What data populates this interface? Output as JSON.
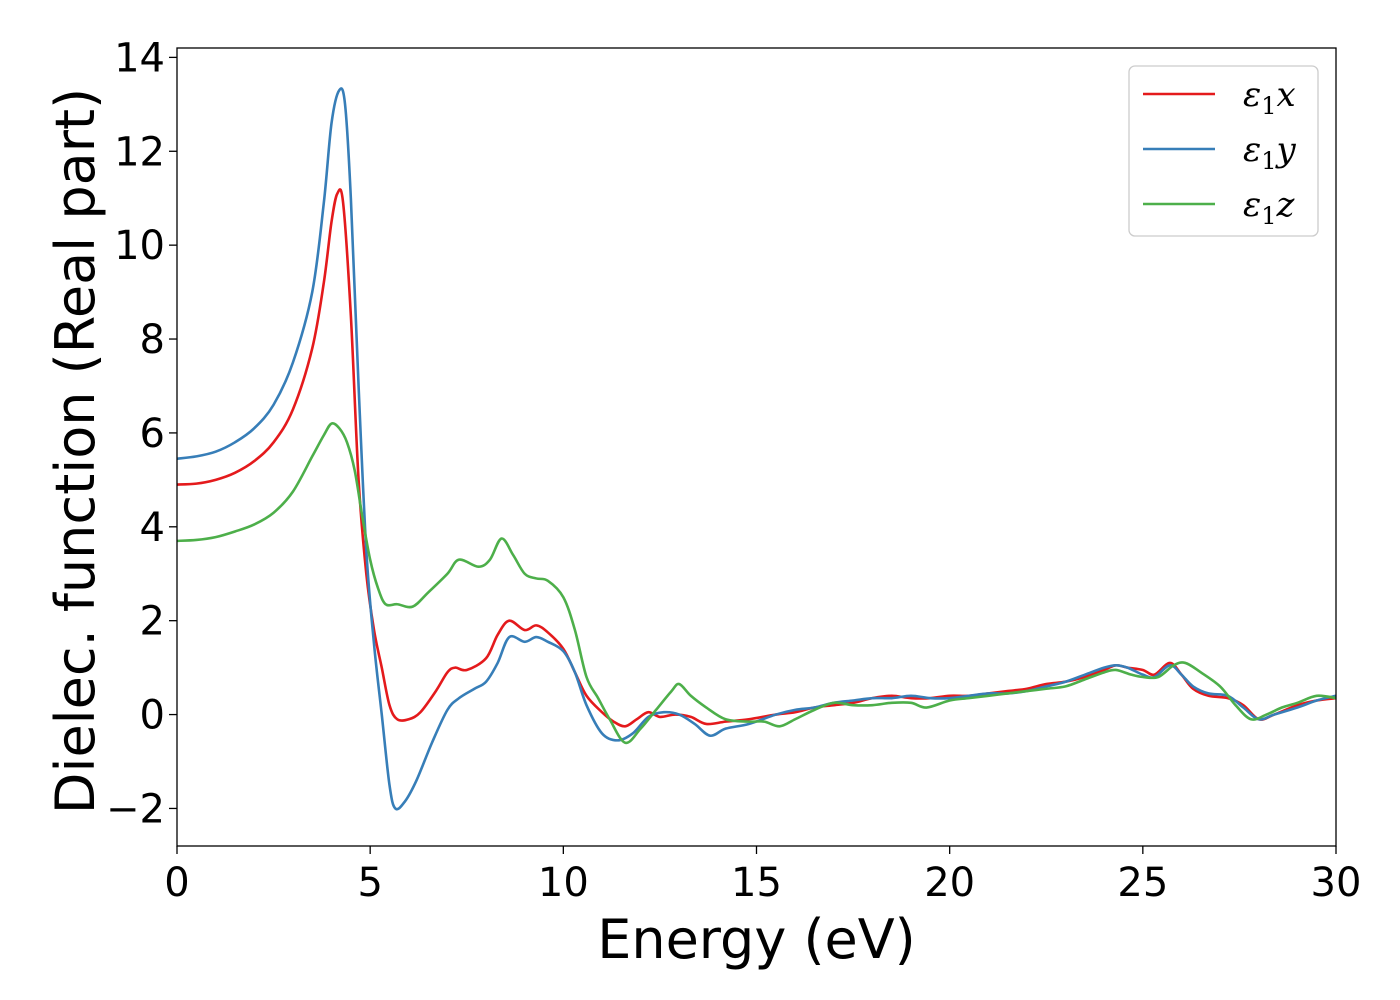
{
  "chart_data": {
    "type": "line",
    "xlabel": "Energy (eV)",
    "ylabel": "Dielec. function (Real part)",
    "xlim": [
      0,
      30
    ],
    "ylim": [
      -2.8,
      14.2
    ],
    "xticks": [
      0,
      5,
      10,
      15,
      20,
      25,
      30
    ],
    "xtick_labels": [
      "0",
      "5",
      "10",
      "15",
      "20",
      "25",
      "30"
    ],
    "yticks": [
      -2,
      0,
      2,
      4,
      6,
      8,
      10,
      12,
      14
    ],
    "ytick_labels": [
      "−2",
      "0",
      "2",
      "4",
      "6",
      "8",
      "10",
      "12",
      "14"
    ],
    "grid": false,
    "legend_position": "top-right",
    "series": [
      {
        "name": "ε1x",
        "legend": {
          "base": "ε",
          "sub": "1",
          "suffix": "x"
        },
        "color": "#e41a1c",
        "points": [
          [
            0,
            4.9
          ],
          [
            0.5,
            4.92
          ],
          [
            1,
            5.0
          ],
          [
            1.5,
            5.15
          ],
          [
            2,
            5.4
          ],
          [
            2.5,
            5.8
          ],
          [
            3,
            6.5
          ],
          [
            3.5,
            7.8
          ],
          [
            3.8,
            9.2
          ],
          [
            4.0,
            10.5
          ],
          [
            4.15,
            11.1
          ],
          [
            4.3,
            10.9
          ],
          [
            4.5,
            8.5
          ],
          [
            4.7,
            5.0
          ],
          [
            4.9,
            3.0
          ],
          [
            5.1,
            1.8
          ],
          [
            5.3,
            1.0
          ],
          [
            5.5,
            0.2
          ],
          [
            5.7,
            -0.1
          ],
          [
            6.0,
            -0.1
          ],
          [
            6.3,
            0.05
          ],
          [
            6.7,
            0.5
          ],
          [
            7.0,
            0.9
          ],
          [
            7.2,
            1.0
          ],
          [
            7.5,
            0.95
          ],
          [
            8.0,
            1.2
          ],
          [
            8.3,
            1.7
          ],
          [
            8.6,
            2.0
          ],
          [
            9.0,
            1.8
          ],
          [
            9.3,
            1.9
          ],
          [
            9.6,
            1.75
          ],
          [
            10.0,
            1.4
          ],
          [
            10.3,
            0.9
          ],
          [
            10.6,
            0.4
          ],
          [
            11.0,
            0.05
          ],
          [
            11.3,
            -0.15
          ],
          [
            11.6,
            -0.25
          ],
          [
            11.9,
            -0.1
          ],
          [
            12.2,
            0.05
          ],
          [
            12.5,
            -0.05
          ],
          [
            12.9,
            0.0
          ],
          [
            13.3,
            -0.05
          ],
          [
            13.7,
            -0.2
          ],
          [
            14.2,
            -0.15
          ],
          [
            14.8,
            -0.1
          ],
          [
            15.5,
            0.0
          ],
          [
            16.0,
            0.05
          ],
          [
            16.5,
            0.15
          ],
          [
            17.0,
            0.2
          ],
          [
            17.5,
            0.25
          ],
          [
            18.0,
            0.35
          ],
          [
            18.5,
            0.4
          ],
          [
            19.0,
            0.35
          ],
          [
            19.5,
            0.35
          ],
          [
            20.0,
            0.4
          ],
          [
            20.5,
            0.4
          ],
          [
            21.0,
            0.45
          ],
          [
            21.5,
            0.5
          ],
          [
            22.0,
            0.55
          ],
          [
            22.5,
            0.65
          ],
          [
            23.0,
            0.7
          ],
          [
            23.5,
            0.8
          ],
          [
            24.0,
            0.95
          ],
          [
            24.3,
            1.05
          ],
          [
            24.6,
            1.0
          ],
          [
            25.0,
            0.95
          ],
          [
            25.3,
            0.85
          ],
          [
            25.7,
            1.1
          ],
          [
            26.0,
            0.85
          ],
          [
            26.3,
            0.55
          ],
          [
            26.7,
            0.4
          ],
          [
            27.2,
            0.35
          ],
          [
            27.6,
            0.2
          ],
          [
            28.0,
            -0.1
          ],
          [
            28.4,
            0.0
          ],
          [
            29.0,
            0.2
          ],
          [
            29.5,
            0.3
          ],
          [
            30.0,
            0.35
          ]
        ]
      },
      {
        "name": "ε1y",
        "legend": {
          "base": "ε",
          "sub": "1",
          "suffix": "y"
        },
        "color": "#377eb8",
        "points": [
          [
            0,
            5.45
          ],
          [
            0.5,
            5.5
          ],
          [
            1,
            5.6
          ],
          [
            1.5,
            5.8
          ],
          [
            2,
            6.1
          ],
          [
            2.5,
            6.6
          ],
          [
            3,
            7.5
          ],
          [
            3.5,
            9.0
          ],
          [
            3.8,
            10.9
          ],
          [
            4.0,
            12.6
          ],
          [
            4.2,
            13.3
          ],
          [
            4.35,
            13.0
          ],
          [
            4.5,
            11.0
          ],
          [
            4.7,
            7.0
          ],
          [
            4.9,
            3.5
          ],
          [
            5.1,
            1.5
          ],
          [
            5.3,
            0.0
          ],
          [
            5.5,
            -1.5
          ],
          [
            5.65,
            -2.0
          ],
          [
            5.9,
            -1.85
          ],
          [
            6.2,
            -1.4
          ],
          [
            6.6,
            -0.6
          ],
          [
            7.0,
            0.1
          ],
          [
            7.3,
            0.35
          ],
          [
            7.7,
            0.55
          ],
          [
            8.0,
            0.7
          ],
          [
            8.3,
            1.1
          ],
          [
            8.6,
            1.65
          ],
          [
            9.0,
            1.55
          ],
          [
            9.3,
            1.65
          ],
          [
            9.6,
            1.55
          ],
          [
            10.0,
            1.35
          ],
          [
            10.3,
            0.9
          ],
          [
            10.6,
            0.2
          ],
          [
            11.0,
            -0.4
          ],
          [
            11.4,
            -0.55
          ],
          [
            11.8,
            -0.4
          ],
          [
            12.2,
            -0.05
          ],
          [
            12.6,
            0.05
          ],
          [
            13.0,
            0.0
          ],
          [
            13.4,
            -0.2
          ],
          [
            13.8,
            -0.45
          ],
          [
            14.2,
            -0.3
          ],
          [
            14.8,
            -0.2
          ],
          [
            15.5,
            0.0
          ],
          [
            16.0,
            0.1
          ],
          [
            16.5,
            0.15
          ],
          [
            17.0,
            0.25
          ],
          [
            17.5,
            0.3
          ],
          [
            18.0,
            0.35
          ],
          [
            18.5,
            0.35
          ],
          [
            19.0,
            0.4
          ],
          [
            19.5,
            0.35
          ],
          [
            20.0,
            0.35
          ],
          [
            20.5,
            0.4
          ],
          [
            21.0,
            0.45
          ],
          [
            21.5,
            0.45
          ],
          [
            22.0,
            0.5
          ],
          [
            22.5,
            0.6
          ],
          [
            23.0,
            0.7
          ],
          [
            23.5,
            0.85
          ],
          [
            24.0,
            1.0
          ],
          [
            24.3,
            1.05
          ],
          [
            24.6,
            1.0
          ],
          [
            25.0,
            0.85
          ],
          [
            25.3,
            0.8
          ],
          [
            25.7,
            1.05
          ],
          [
            26.0,
            0.85
          ],
          [
            26.3,
            0.6
          ],
          [
            26.7,
            0.45
          ],
          [
            27.2,
            0.4
          ],
          [
            27.6,
            0.15
          ],
          [
            28.0,
            -0.1
          ],
          [
            28.4,
            0.0
          ],
          [
            29.0,
            0.15
          ],
          [
            29.5,
            0.3
          ],
          [
            30.0,
            0.4
          ]
        ]
      },
      {
        "name": "ε1z",
        "legend": {
          "base": "ε",
          "sub": "1",
          "suffix": "z"
        },
        "color": "#4daf4a",
        "points": [
          [
            0,
            3.7
          ],
          [
            0.5,
            3.72
          ],
          [
            1,
            3.78
          ],
          [
            1.5,
            3.9
          ],
          [
            2,
            4.05
          ],
          [
            2.5,
            4.3
          ],
          [
            3,
            4.75
          ],
          [
            3.5,
            5.5
          ],
          [
            3.8,
            5.95
          ],
          [
            4.0,
            6.2
          ],
          [
            4.2,
            6.1
          ],
          [
            4.4,
            5.8
          ],
          [
            4.6,
            5.2
          ],
          [
            4.8,
            4.2
          ],
          [
            5.0,
            3.3
          ],
          [
            5.2,
            2.7
          ],
          [
            5.4,
            2.35
          ],
          [
            5.7,
            2.35
          ],
          [
            6.1,
            2.3
          ],
          [
            6.5,
            2.6
          ],
          [
            7.0,
            3.0
          ],
          [
            7.3,
            3.3
          ],
          [
            7.8,
            3.15
          ],
          [
            8.1,
            3.3
          ],
          [
            8.4,
            3.75
          ],
          [
            8.7,
            3.4
          ],
          [
            9.0,
            3.0
          ],
          [
            9.3,
            2.9
          ],
          [
            9.6,
            2.85
          ],
          [
            10.0,
            2.5
          ],
          [
            10.3,
            1.8
          ],
          [
            10.6,
            0.8
          ],
          [
            10.9,
            0.35
          ],
          [
            11.2,
            -0.1
          ],
          [
            11.6,
            -0.6
          ],
          [
            12.0,
            -0.3
          ],
          [
            12.4,
            0.1
          ],
          [
            12.8,
            0.5
          ],
          [
            13.0,
            0.65
          ],
          [
            13.3,
            0.4
          ],
          [
            13.7,
            0.15
          ],
          [
            14.2,
            -0.1
          ],
          [
            14.8,
            -0.15
          ],
          [
            15.2,
            -0.15
          ],
          [
            15.6,
            -0.25
          ],
          [
            16.0,
            -0.1
          ],
          [
            16.5,
            0.1
          ],
          [
            17.0,
            0.25
          ],
          [
            17.5,
            0.2
          ],
          [
            18.0,
            0.2
          ],
          [
            18.5,
            0.25
          ],
          [
            19.0,
            0.25
          ],
          [
            19.4,
            0.15
          ],
          [
            20.0,
            0.3
          ],
          [
            20.5,
            0.35
          ],
          [
            21.0,
            0.4
          ],
          [
            21.5,
            0.45
          ],
          [
            22.0,
            0.5
          ],
          [
            22.5,
            0.55
          ],
          [
            23.0,
            0.6
          ],
          [
            23.5,
            0.75
          ],
          [
            24.0,
            0.9
          ],
          [
            24.3,
            0.95
          ],
          [
            24.7,
            0.85
          ],
          [
            25.0,
            0.8
          ],
          [
            25.4,
            0.8
          ],
          [
            25.8,
            1.05
          ],
          [
            26.1,
            1.1
          ],
          [
            26.5,
            0.9
          ],
          [
            27.0,
            0.6
          ],
          [
            27.4,
            0.2
          ],
          [
            27.8,
            -0.1
          ],
          [
            28.2,
            0.0
          ],
          [
            28.6,
            0.15
          ],
          [
            29.0,
            0.25
          ],
          [
            29.5,
            0.4
          ],
          [
            30.0,
            0.35
          ]
        ]
      }
    ]
  }
}
